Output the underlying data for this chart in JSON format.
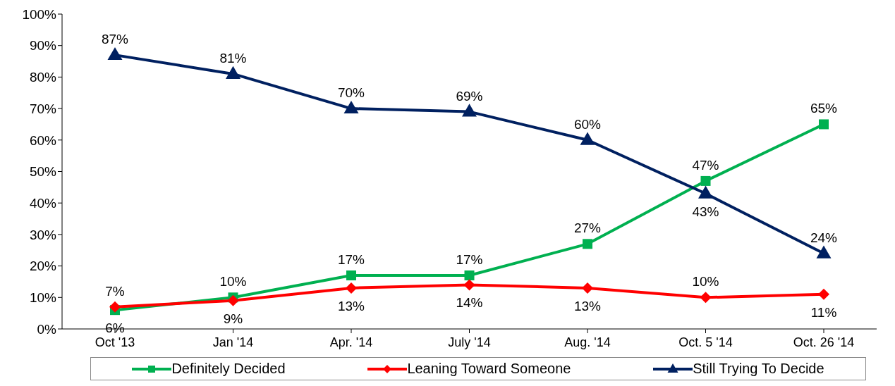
{
  "chart_data": {
    "type": "line",
    "categories": [
      "Oct '13",
      "Jan '14",
      "Apr. '14",
      "July '14",
      "Aug. '14",
      "Oct. 5 '14",
      "Oct. 26 '14"
    ],
    "ylim": [
      0,
      100
    ],
    "yticks": [
      {
        "value": 0,
        "label": "0%"
      },
      {
        "value": 10,
        "label": "10%"
      },
      {
        "value": 20,
        "label": "20%"
      },
      {
        "value": 30,
        "label": "30%"
      },
      {
        "value": 40,
        "label": "40%"
      },
      {
        "value": 50,
        "label": "50%"
      },
      {
        "value": 60,
        "label": "60%"
      },
      {
        "value": 70,
        "label": "70%"
      },
      {
        "value": 80,
        "label": "80%"
      },
      {
        "value": 90,
        "label": "90%"
      },
      {
        "value": 100,
        "label": "100%"
      }
    ],
    "grid": false,
    "legend": "bottom",
    "series": [
      {
        "name": "Definitely Decided",
        "color": "#00b050",
        "marker": "square",
        "values": [
          6,
          10,
          17,
          17,
          27,
          47,
          65
        ],
        "value_labels": [
          "6%",
          "10%",
          "17%",
          "17%",
          "27%",
          "47%",
          "65%"
        ]
      },
      {
        "name": "Leaning Toward Someone",
        "color": "#ff0000",
        "marker": "diamond",
        "values": [
          7,
          9,
          13,
          14,
          13,
          10,
          11
        ],
        "value_labels": [
          "7%",
          "9%",
          "13%",
          "14%",
          "13%",
          "10%",
          "11%"
        ]
      },
      {
        "name": "Still Trying To Decide",
        "color": "#002060",
        "marker": "triangle",
        "values": [
          87,
          81,
          70,
          69,
          60,
          43,
          24
        ],
        "value_labels": [
          "87%",
          "81%",
          "70%",
          "69%",
          "60%",
          "43%",
          "24%"
        ]
      }
    ]
  }
}
